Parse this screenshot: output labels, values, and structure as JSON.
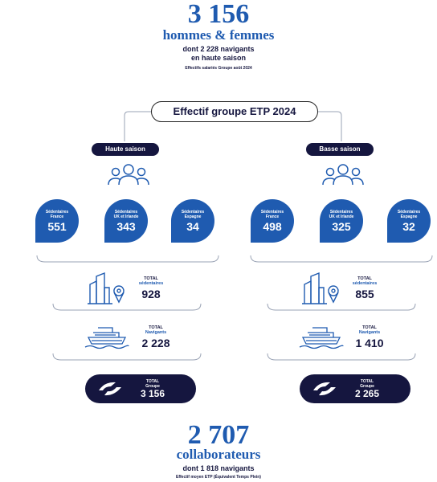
{
  "header": {
    "total": "3 156",
    "title": "hommes & femmes",
    "subtitle_line1": "dont 2 228 navigants",
    "subtitle_line2": "en haute saison",
    "note": "Effectifs salariés Groupe août 2024"
  },
  "main_title": "Effectif groupe ETP 2024",
  "haute": {
    "label": "Haute saison",
    "drops": [
      {
        "label1": "Sédentaires",
        "label2": "France",
        "value": "551"
      },
      {
        "label1": "Sédentaires",
        "label2": "UK et Irlande",
        "value": "343"
      },
      {
        "label1": "Sédentaires",
        "label2": "Espagne",
        "value": "34"
      }
    ],
    "sed_total_label1": "TOTAL",
    "sed_total_label2": "sédentaires",
    "sed_total": "928",
    "nav_total_label1": "TOTAL",
    "nav_total_label2": "Navigants",
    "nav_total": "2 228",
    "group_label1": "TOTAL",
    "group_label2": "Groupe",
    "group_total": "3 156"
  },
  "basse": {
    "label": "Basse saison",
    "drops": [
      {
        "label1": "Sédentaires",
        "label2": "France",
        "value": "498"
      },
      {
        "label1": "Sédentaires",
        "label2": "UK et Irlande",
        "value": "325"
      },
      {
        "label1": "Sédentaires",
        "label2": "Espagne",
        "value": "32"
      }
    ],
    "sed_total_label1": "TOTAL",
    "sed_total_label2": "sédentaires",
    "sed_total": "855",
    "nav_total_label1": "TOTAL",
    "nav_total_label2": "Navigants",
    "nav_total": "1 410",
    "group_label1": "TOTAL",
    "group_label2": "Groupe",
    "group_total": "2 265"
  },
  "footer": {
    "total": "2 707",
    "title": "collaborateurs",
    "subtitle": "dont 1 818 navigants",
    "note": "Effectif moyen ETP (Équivalent Temps Plein)"
  },
  "colors": {
    "blue": "#1f5bb0",
    "navy": "#15163f"
  }
}
